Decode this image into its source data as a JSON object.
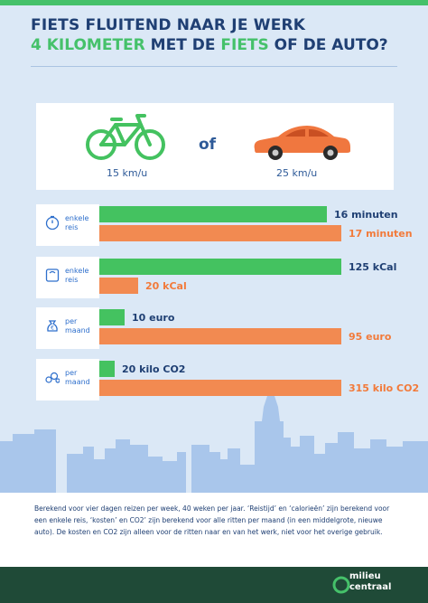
{
  "title": {
    "line1": "FIETS FLUITEND NAAR JE WERK",
    "line2_part1": "4 KILOMETER",
    "line2_part2": " MET DE ",
    "line2_part3": "FIETS",
    "line2_part4": " OF DE AUTO?"
  },
  "comparison": {
    "bike_speed": "15 km/u",
    "or_label": "of",
    "car_speed": "25 km/u"
  },
  "colors": {
    "bike": "#44c260",
    "car": "#f28a51",
    "navy": "#1f3f73",
    "footer": "#1f4a37"
  },
  "metrics": [
    {
      "icon": "stopwatch-icon",
      "label1": "enkele",
      "label2": "reis",
      "bike_value": 16,
      "car_value": 17,
      "bike_text": "16 minuten",
      "car_text": "17 minuten"
    },
    {
      "icon": "scale-icon",
      "label1": "enkele",
      "label2": "reis",
      "bike_value": 125,
      "car_value": 20,
      "bike_text": "125 kCal",
      "car_text": "20 kCal"
    },
    {
      "icon": "money-bag-icon",
      "label1": "per",
      "label2": "maand",
      "bike_value": 10,
      "car_value": 95,
      "bike_text": "10 euro",
      "car_text": "95 euro"
    },
    {
      "icon": "co2-bubbles-icon",
      "label1": "per",
      "label2": "maand",
      "bike_value": 20,
      "car_value": 315,
      "bike_text": "20 kilo CO2",
      "car_text": "315 kilo CO2"
    }
  ],
  "footnote": "Berekend voor vier dagen reizen per week, 40 weken per jaar. ‘Reistijd’ en ‘calorieën’ zijn berekend voor een enkele reis, ‘kosten’ en CO2’ zijn berekend voor alle ritten per maand (in een middelgrote, nieuwe auto). De kosten en CO2 zijn alleen voor de ritten naar en van het werk, niet voor het overige gebruik.",
  "logo": {
    "line1": "milieu",
    "line2": "centraal"
  }
}
